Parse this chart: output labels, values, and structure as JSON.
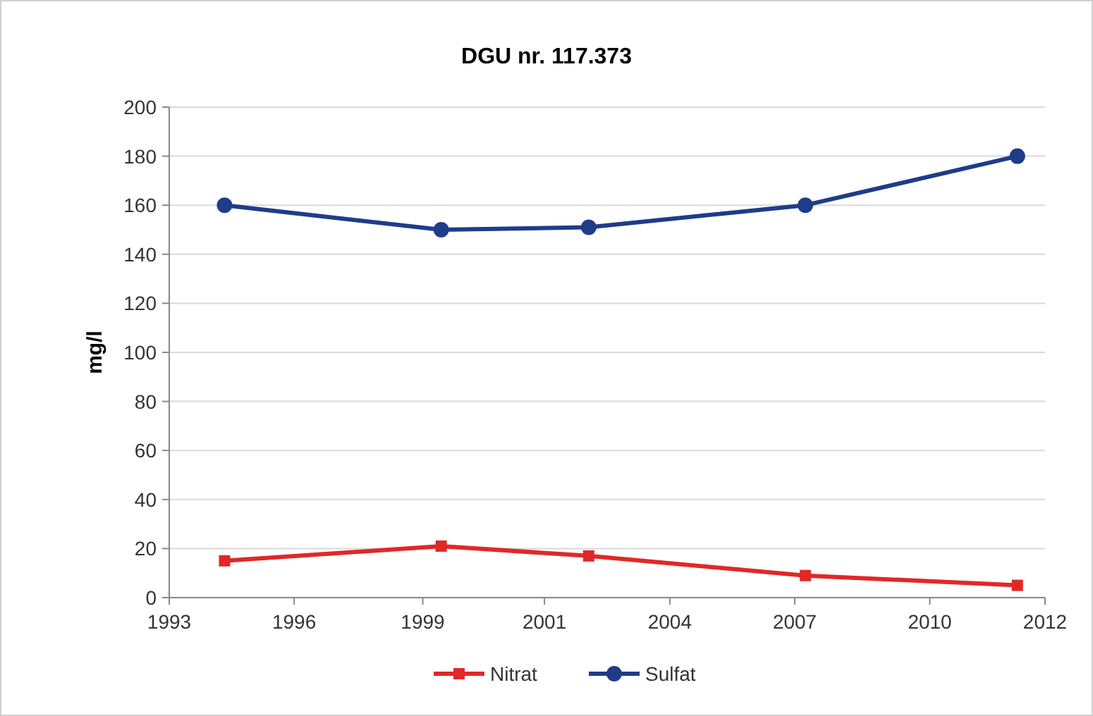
{
  "chart_data": {
    "type": "line",
    "title": "DGU nr. 117.373",
    "ylabel": "mg/l",
    "x": [
      1994.2,
      1998.9,
      2002.1,
      2006.8,
      2011.4
    ],
    "series": [
      {
        "name": "Nitrat",
        "color": "#e02828",
        "marker": "square",
        "values": [
          15,
          21,
          17,
          9,
          5
        ]
      },
      {
        "name": "Sulfat",
        "color": "#1f3c88",
        "marker": "circle",
        "values": [
          160,
          150,
          151,
          160,
          180
        ]
      }
    ],
    "xlim": [
      1993,
      2012
    ],
    "xticks": [
      {
        "value": 1993,
        "label": "1993"
      },
      {
        "value": 1995.71,
        "label": "1996"
      },
      {
        "value": 1998.5,
        "label": "1999"
      },
      {
        "value": 2001.14,
        "label": "2001"
      },
      {
        "value": 2003.86,
        "label": "2004"
      },
      {
        "value": 2006.57,
        "label": "2007"
      },
      {
        "value": 2009.5,
        "label": "2010"
      },
      {
        "value": 2012,
        "label": "2012"
      }
    ],
    "ylim": [
      0,
      200
    ],
    "yticks": [
      0,
      20,
      40,
      60,
      80,
      100,
      120,
      140,
      160,
      180,
      200
    ],
    "grid": "y",
    "legend": "bottom",
    "line_style": "solid"
  }
}
